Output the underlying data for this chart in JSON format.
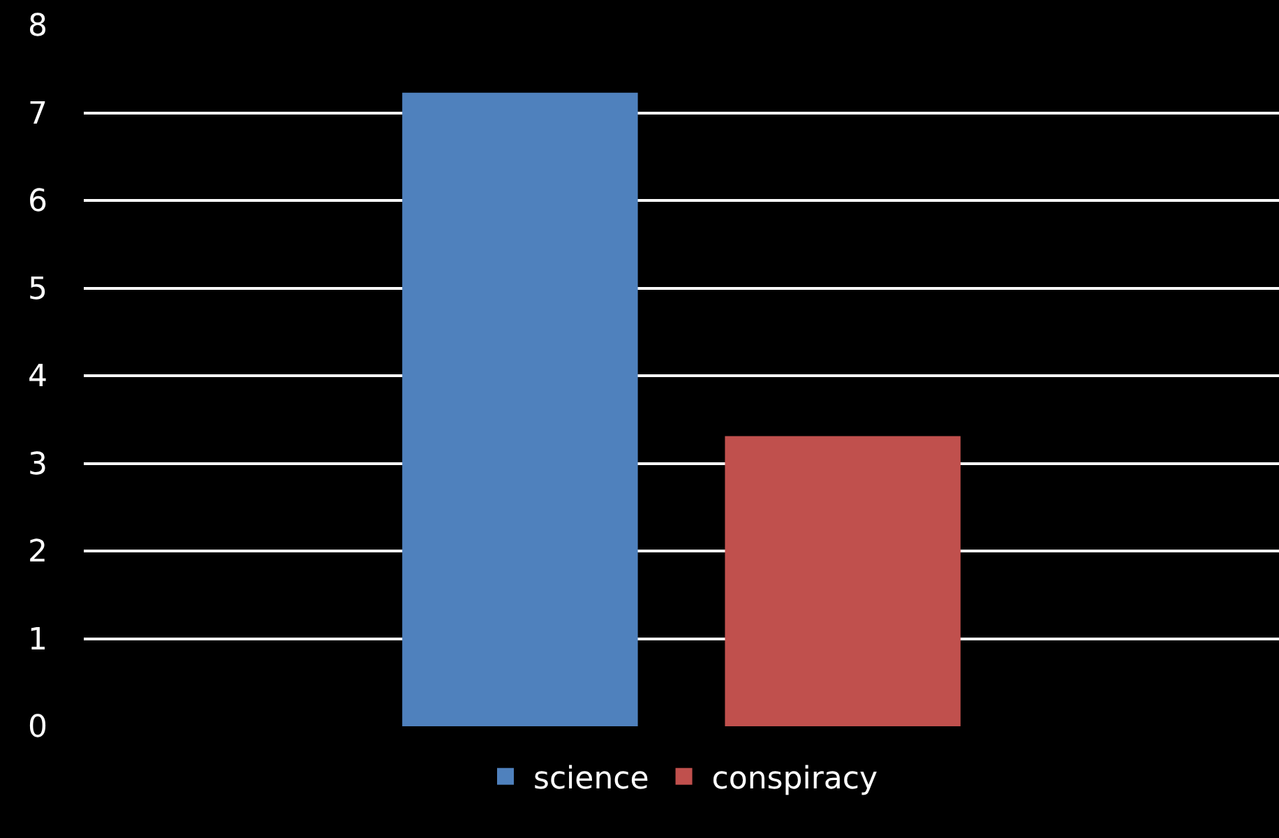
{
  "chart_data": {
    "type": "bar",
    "categories": [
      null
    ],
    "series": [
      {
        "name": "science",
        "color": "#4f81bd",
        "values": [
          7.23
        ]
      },
      {
        "name": "conspiracy",
        "color": "#c0504d",
        "values": [
          3.31
        ]
      }
    ],
    "ylim": [
      0,
      8
    ],
    "yticks": [
      0,
      1,
      2,
      3,
      4,
      5,
      6,
      7,
      8
    ],
    "grid": "y",
    "legend": "bottom"
  }
}
